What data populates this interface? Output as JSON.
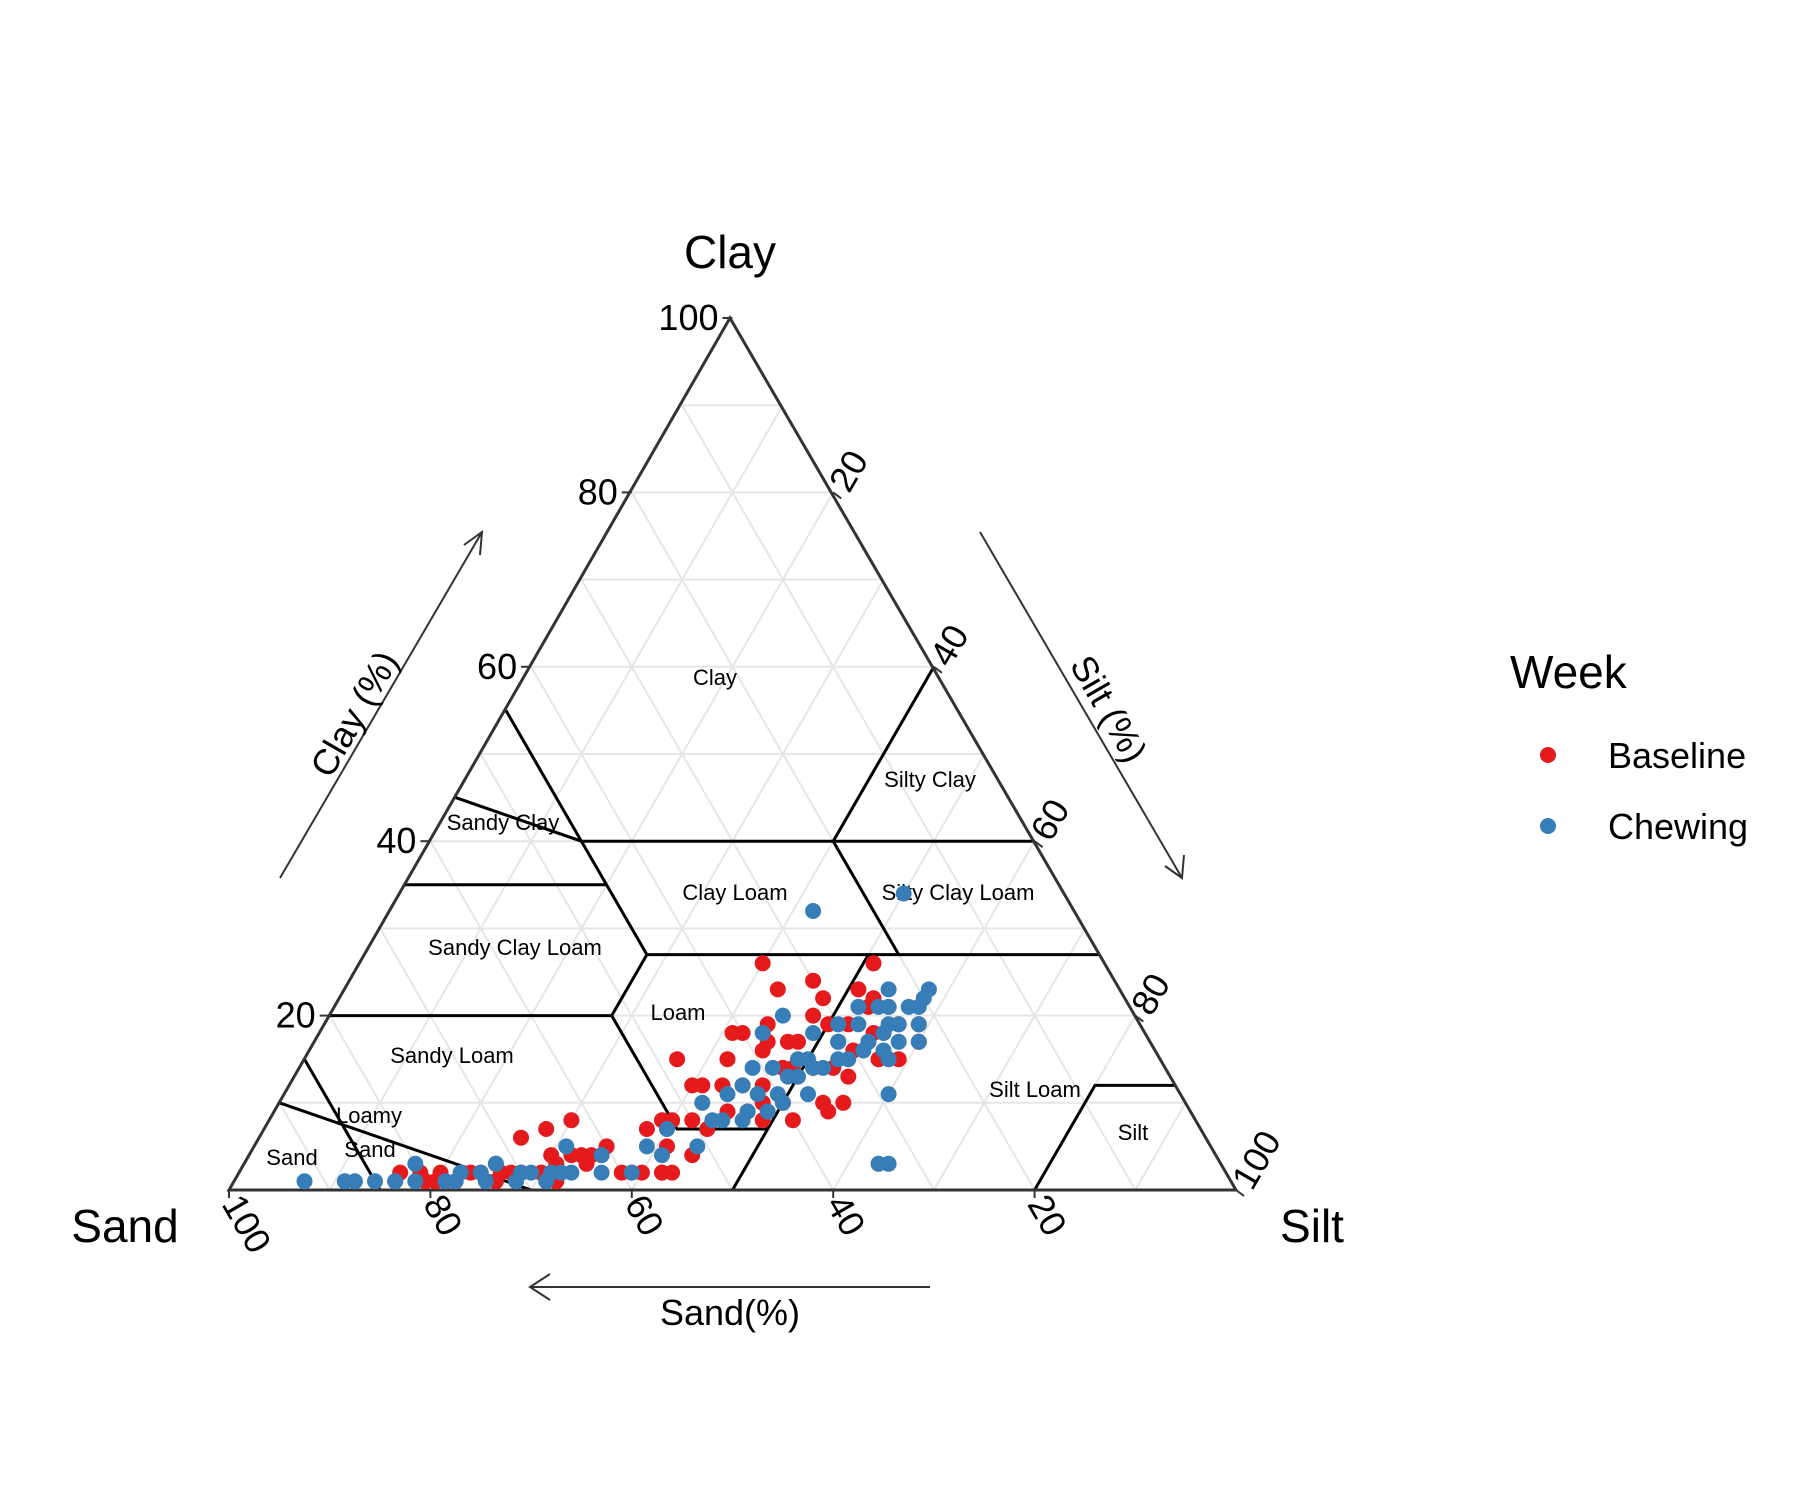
{
  "chart_data": {
    "type": "scatter",
    "subtype": "ternary",
    "axes": {
      "top": {
        "name": "Clay",
        "title": "Clay (%)"
      },
      "left": {
        "name": "Sand",
        "title": "Sand(%)"
      },
      "right": {
        "name": "Silt",
        "title": "Silt (%)"
      }
    },
    "ticks": {
      "clay": [
        "20",
        "40",
        "60",
        "80",
        "100"
      ],
      "silt": [
        "20",
        "40",
        "60",
        "80",
        "100"
      ],
      "sand": [
        "100",
        "80",
        "60",
        "40",
        "20"
      ]
    },
    "grid": true,
    "legend": {
      "title": "Week",
      "position": "right"
    },
    "regions": [
      {
        "name": "Clay"
      },
      {
        "name": "Silty Clay"
      },
      {
        "name": "Sandy Clay"
      },
      {
        "name": "Clay Loam"
      },
      {
        "name": "Silty Clay Loam"
      },
      {
        "name": "Sandy Clay Loam"
      },
      {
        "name": "Loam"
      },
      {
        "name": "Silt Loam"
      },
      {
        "name": "Sandy Loam"
      },
      {
        "name": "Silt"
      },
      {
        "name": "Loamy"
      },
      {
        "name": "Sand"
      },
      {
        "name": "Sand"
      }
    ],
    "series": [
      {
        "name": "Baseline",
        "color": "#e41a1c",
        "points_sand_silt_clay": [
          [
            48,
            37,
            15
          ],
          [
            43,
            42,
            15
          ],
          [
            41,
            41,
            18
          ],
          [
            34,
            40,
            26
          ],
          [
            34,
            43,
            23
          ],
          [
            30,
            46,
            24
          ],
          [
            30,
            48,
            22
          ],
          [
            26,
            51,
            23
          ],
          [
            25,
            53,
            22
          ],
          [
            23,
            51,
            26
          ],
          [
            24,
            55,
            21
          ],
          [
            22,
            59,
            19
          ],
          [
            23,
            60,
            17
          ],
          [
            26,
            59,
            15
          ],
          [
            32,
            55,
            13
          ],
          [
            34,
            56,
            10
          ],
          [
            36,
            54,
            10
          ],
          [
            40,
            50,
            10
          ],
          [
            40,
            52,
            8
          ],
          [
            28,
            57,
            15
          ],
          [
            44,
            47,
            9
          ],
          [
            52,
            44,
            4
          ],
          [
            56,
            42,
            2
          ],
          [
            55,
            43,
            2
          ],
          [
            60,
            38,
            2
          ],
          [
            62,
            34,
            4
          ],
          [
            58,
            40,
            2
          ],
          [
            67,
            32,
            1
          ],
          [
            70,
            28,
            2
          ],
          [
            72,
            26,
            2
          ],
          [
            75,
            23,
            2
          ],
          [
            74,
            24,
            2
          ],
          [
            78,
            20,
            2
          ],
          [
            79,
            20,
            1
          ],
          [
            80,
            19,
            1
          ],
          [
            82,
            16,
            2
          ],
          [
            78,
            21,
            1
          ],
          [
            83,
            16,
            1
          ],
          [
            80,
            18,
            2
          ],
          [
            66,
            31,
            3
          ],
          [
            63,
            33,
            4
          ],
          [
            66,
            30,
            4
          ],
          [
            68,
            30,
            2
          ],
          [
            71,
            27,
            2
          ],
          [
            72,
            25,
            3
          ],
          [
            52,
            40,
            8
          ],
          [
            48,
            40,
            12
          ],
          [
            45,
            43,
            12
          ],
          [
            38,
            48,
            14
          ],
          [
            35,
            51,
            14
          ],
          [
            40,
            42,
            18
          ],
          [
            37,
            49,
            14
          ],
          [
            31,
            50,
            19
          ],
          [
            28,
            55,
            17
          ],
          [
            24,
            57,
            19
          ],
          [
            27,
            55,
            18
          ],
          [
            35,
            48,
            17
          ],
          [
            38,
            45,
            17
          ],
          [
            42,
            48,
            10
          ],
          [
            46,
            45,
            9
          ],
          [
            49,
            44,
            7
          ],
          [
            43,
            49,
            8
          ],
          [
            36,
            55,
            9
          ],
          [
            33,
            53,
            14
          ],
          [
            30,
            54,
            16
          ],
          [
            29,
            52,
            19
          ],
          [
            37,
            44,
            19
          ],
          [
            43,
            45,
            12
          ],
          [
            47,
            41,
            12
          ],
          [
            50,
            42,
            8
          ],
          [
            53,
            39,
            8
          ],
          [
            55,
            38,
            7
          ],
          [
            60,
            35,
            5
          ],
          [
            63,
            34,
            3
          ],
          [
            70,
            28,
            2
          ],
          [
            73,
            26,
            1
          ],
          [
            77,
            22,
            1
          ],
          [
            64,
            32,
            4
          ],
          [
            61,
            35,
            4
          ],
          [
            59,
            39,
            2
          ],
          [
            56,
            42,
            2
          ],
          [
            62,
            30,
            8
          ],
          [
            65,
            28,
            7
          ],
          [
            68,
            26,
            6
          ],
          [
            54,
            41,
            5
          ],
          [
            41,
            47,
            12
          ],
          [
            39,
            45,
            16
          ],
          [
            36,
            47,
            17
          ],
          [
            32,
            48,
            20
          ],
          [
            26,
            53,
            21
          ]
        ]
      },
      {
        "name": "Chewing",
        "color": "#377eb8",
        "points_sand_silt_clay": [
          [
            92,
            7,
            1
          ],
          [
            88,
            11,
            1
          ],
          [
            87,
            12,
            1
          ],
          [
            85,
            14,
            1
          ],
          [
            83,
            16,
            1
          ],
          [
            81,
            18,
            1
          ],
          [
            80,
            17,
            3
          ],
          [
            78,
            21,
            1
          ],
          [
            76,
            22,
            2
          ],
          [
            74,
            24,
            2
          ],
          [
            72,
            25,
            3
          ],
          [
            70,
            28,
            2
          ],
          [
            69,
            29,
            2
          ],
          [
            67,
            31,
            2
          ],
          [
            66,
            32,
            2
          ],
          [
            64,
            31,
            5
          ],
          [
            61,
            35,
            4
          ],
          [
            56,
            39,
            5
          ],
          [
            53,
            40,
            7
          ],
          [
            48,
            42,
            10
          ],
          [
            45,
            44,
            11
          ],
          [
            43,
            45,
            12
          ],
          [
            41,
            45,
            14
          ],
          [
            38,
            44,
            18
          ],
          [
            35,
            45,
            20
          ],
          [
            33,
            49,
            18
          ],
          [
            30,
            51,
            19
          ],
          [
            27,
            52,
            21
          ],
          [
            24,
            55,
            21
          ],
          [
            21,
            58,
            21
          ],
          [
            19,
            58,
            23
          ],
          [
            23,
            54,
            23
          ],
          [
            25,
            54,
            21
          ],
          [
            28,
            53,
            19
          ],
          [
            31,
            52,
            17
          ],
          [
            34,
            52,
            14
          ],
          [
            37,
            52,
            11
          ],
          [
            40,
            50,
            10
          ],
          [
            42,
            49,
            9
          ],
          [
            45,
            47,
            8
          ],
          [
            48,
            44,
            8
          ],
          [
            51,
            44,
            5
          ],
          [
            55,
            41,
            4
          ],
          [
            59,
            39,
            2
          ],
          [
            62,
            36,
            2
          ],
          [
            65,
            33,
            2
          ],
          [
            68,
            31,
            1
          ],
          [
            71,
            28,
            1
          ],
          [
            74,
            25,
            1
          ],
          [
            77,
            22,
            1
          ],
          [
            16,
            50,
            34
          ],
          [
            26,
            42,
            32
          ],
          [
            23,
            60,
            17
          ],
          [
            25,
            58,
            17
          ],
          [
            35,
            50,
            15
          ],
          [
            39,
            47,
            14
          ],
          [
            36,
            49,
            15
          ],
          [
            32,
            53,
            15
          ],
          [
            29,
            55,
            16
          ],
          [
            27,
            57,
            16
          ],
          [
            47,
            45,
            8
          ],
          [
            44,
            47,
            9
          ],
          [
            42,
            47,
            11
          ],
          [
            40,
            49,
            11
          ],
          [
            37,
            50,
            13
          ],
          [
            35,
            51,
            14
          ],
          [
            31,
            52,
            17
          ],
          [
            28,
            55,
            17
          ],
          [
            26,
            56,
            18
          ],
          [
            33,
            64,
            3
          ],
          [
            34,
            63,
            3
          ],
          [
            29,
            60,
            11
          ],
          [
            27,
            58,
            15
          ],
          [
            22,
            59,
            19
          ],
          [
            24,
            57,
            19
          ],
          [
            20,
            58,
            22
          ],
          [
            22,
            57,
            21
          ],
          [
            31,
            54,
            15
          ],
          [
            25,
            56,
            19
          ],
          [
            38,
            49,
            13
          ]
        ]
      }
    ]
  }
}
